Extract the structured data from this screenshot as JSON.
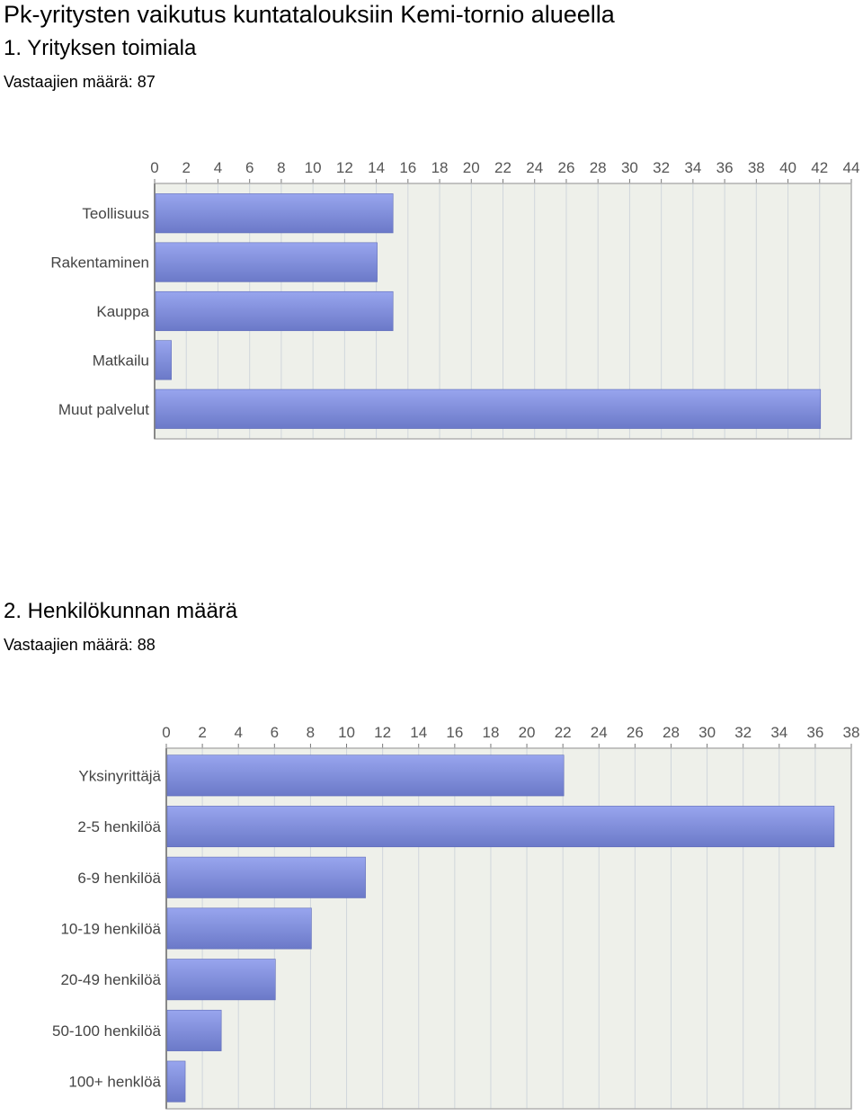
{
  "page": {
    "title": "Pk-yritysten vaikutus kuntatalouksiin Kemi-tornio alueella"
  },
  "questions": [
    {
      "title": "1. Yrityksen toimiala",
      "count": "Vastaajien määrä: 87"
    },
    {
      "title": "2. Henkilökunnan määrä",
      "count": "Vastaajien määrä: 88"
    }
  ],
  "colors": {
    "bar": "#7f8ee0",
    "bar_dark": "#6b79c8",
    "plot_bg": "#eef0ea",
    "grid": "#d0d6dc",
    "frame": "#b0b0b0"
  },
  "chart_data": [
    {
      "type": "bar",
      "orientation": "horizontal",
      "categories": [
        "Teollisuus",
        "Rakentaminen",
        "Kauppa",
        "Matkailu",
        "Muut palvelut"
      ],
      "values": [
        15,
        14,
        15,
        1,
        42
      ],
      "xlim": [
        0,
        44
      ],
      "ticks": [
        0,
        2,
        4,
        6,
        8,
        10,
        12,
        14,
        16,
        18,
        20,
        22,
        24,
        26,
        28,
        30,
        32,
        34,
        36,
        38,
        40,
        42,
        44
      ],
      "grid": true
    },
    {
      "type": "bar",
      "orientation": "horizontal",
      "categories": [
        "Yksinyrittäjä",
        "2-5 henkilöä",
        "6-9 henkilöä",
        "10-19 henkilöä",
        "20-49 henkilöä",
        "50-100 henkilöä",
        "100+ henklöä"
      ],
      "values": [
        22,
        37,
        11,
        8,
        6,
        3,
        1
      ],
      "xlim": [
        0,
        38
      ],
      "ticks": [
        0,
        2,
        4,
        6,
        8,
        10,
        12,
        14,
        16,
        18,
        20,
        22,
        24,
        26,
        28,
        30,
        32,
        34,
        36,
        38
      ],
      "grid": true
    }
  ]
}
